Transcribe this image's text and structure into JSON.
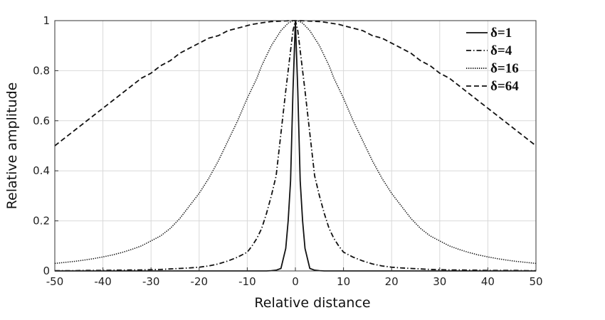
{
  "chart_data": {
    "type": "line",
    "xlabel": "Relative distance",
    "ylabel": "Relative amplitude",
    "xlim": [
      -50,
      50
    ],
    "ylim": [
      0,
      1
    ],
    "x_ticks": [
      -50,
      -40,
      -30,
      -20,
      -10,
      0,
      10,
      20,
      30,
      40,
      50
    ],
    "y_ticks": [
      0,
      0.2,
      0.4,
      0.6,
      0.8,
      1
    ],
    "grid": true,
    "legend_position": "top-right",
    "x": [
      -50,
      -48,
      -46,
      -44,
      -42,
      -40,
      -38,
      -36,
      -34,
      -32,
      -30,
      -28,
      -26,
      -24,
      -22,
      -20,
      -18,
      -16,
      -14,
      -12,
      -10,
      -9,
      -8,
      -7,
      -6,
      -5,
      -4,
      -3,
      -2,
      -1.5,
      -1,
      -0.5,
      0,
      0.5,
      1,
      1.5,
      2,
      3,
      4,
      5,
      6,
      7,
      8,
      9,
      10,
      12,
      14,
      16,
      18,
      20,
      22,
      24,
      26,
      28,
      30,
      32,
      34,
      36,
      38,
      40,
      42,
      44,
      46,
      48,
      50
    ],
    "series": [
      {
        "name": "δ=1",
        "style": "solid",
        "values": [
          0,
          0,
          0,
          0,
          0,
          0,
          0,
          0,
          0,
          0,
          0,
          0,
          0,
          0,
          0,
          0,
          0,
          0,
          0,
          0,
          0,
          0,
          0,
          0,
          0,
          0.001,
          0.003,
          0.01,
          0.09,
          0.2,
          0.36,
          0.72,
          1,
          0.72,
          0.36,
          0.2,
          0.09,
          0.01,
          0.003,
          0.001,
          0,
          0,
          0,
          0,
          0,
          0,
          0,
          0,
          0,
          0,
          0,
          0,
          0,
          0,
          0,
          0,
          0,
          0,
          0,
          0,
          0,
          0,
          0,
          0,
          0
        ]
      },
      {
        "name": "δ=4",
        "style": "dashdot",
        "values": [
          0.001,
          0.001,
          0.001,
          0.002,
          0.002,
          0.002,
          0.003,
          0.003,
          0.004,
          0.004,
          0.005,
          0.006,
          0.008,
          0.01,
          0.012,
          0.015,
          0.02,
          0.028,
          0.04,
          0.055,
          0.075,
          0.1,
          0.13,
          0.17,
          0.23,
          0.3,
          0.38,
          0.55,
          0.72,
          0.8,
          0.88,
          0.96,
          1,
          0.96,
          0.88,
          0.8,
          0.72,
          0.55,
          0.38,
          0.3,
          0.23,
          0.17,
          0.13,
          0.1,
          0.075,
          0.055,
          0.04,
          0.028,
          0.02,
          0.015,
          0.012,
          0.01,
          0.008,
          0.006,
          0.005,
          0.004,
          0.004,
          0.003,
          0.003,
          0.002,
          0.002,
          0.002,
          0.002,
          0.001,
          0.001
        ]
      },
      {
        "name": "δ=16",
        "style": "dotted",
        "values": [
          0.03,
          0.034,
          0.038,
          0.043,
          0.049,
          0.056,
          0.064,
          0.074,
          0.086,
          0.1,
          0.12,
          0.14,
          0.17,
          0.21,
          0.26,
          0.31,
          0.37,
          0.44,
          0.52,
          0.6,
          0.69,
          0.73,
          0.77,
          0.82,
          0.86,
          0.9,
          0.93,
          0.96,
          0.98,
          0.99,
          0.995,
          0.999,
          1,
          0.999,
          0.995,
          0.99,
          0.98,
          0.96,
          0.93,
          0.9,
          0.86,
          0.82,
          0.77,
          0.73,
          0.69,
          0.6,
          0.52,
          0.44,
          0.37,
          0.31,
          0.26,
          0.21,
          0.17,
          0.14,
          0.12,
          0.1,
          0.086,
          0.074,
          0.064,
          0.056,
          0.049,
          0.043,
          0.038,
          0.034,
          0.03
        ]
      },
      {
        "name": "δ=64",
        "style": "dashed",
        "values": [
          0.5,
          0.53,
          0.56,
          0.59,
          0.62,
          0.65,
          0.68,
          0.71,
          0.74,
          0.77,
          0.79,
          0.82,
          0.84,
          0.87,
          0.89,
          0.91,
          0.93,
          0.94,
          0.96,
          0.97,
          0.98,
          0.985,
          0.988,
          0.991,
          0.994,
          0.996,
          0.997,
          0.998,
          0.999,
          0.9995,
          0.9998,
          1,
          1,
          1,
          0.9998,
          0.9995,
          0.999,
          0.998,
          0.997,
          0.996,
          0.994,
          0.991,
          0.988,
          0.985,
          0.98,
          0.97,
          0.96,
          0.94,
          0.93,
          0.91,
          0.89,
          0.87,
          0.84,
          0.82,
          0.79,
          0.77,
          0.74,
          0.71,
          0.68,
          0.65,
          0.62,
          0.59,
          0.56,
          0.53,
          0.5
        ]
      }
    ]
  }
}
